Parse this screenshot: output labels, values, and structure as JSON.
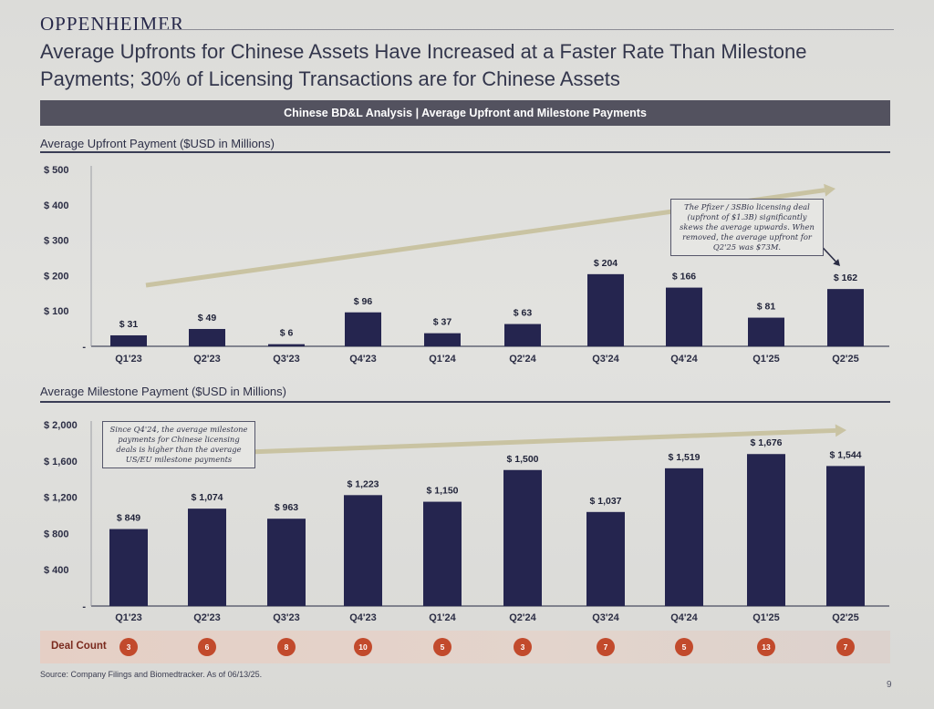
{
  "header": {
    "logo": "OPPENHEIMER",
    "title_line1": "Average Upfronts for Chinese Assets Have Increased at a Faster Rate Than Milestone",
    "title_line2": "Payments; 30% of Licensing Transactions are for Chinese Assets",
    "banner": "Chinese BD&L Analysis | Average Upfront and Milestone Payments"
  },
  "chart_data": [
    {
      "type": "bar",
      "title": "Average Upfront Payment ($USD in Millions)",
      "categories": [
        "Q1'23",
        "Q2'23",
        "Q3'23",
        "Q4'23",
        "Q1'24",
        "Q2'24",
        "Q3'24",
        "Q4'24",
        "Q1'25",
        "Q2'25"
      ],
      "values": [
        31,
        49,
        6,
        96,
        37,
        63,
        204,
        166,
        81,
        162
      ],
      "value_labels": [
        "$ 31",
        "$ 49",
        "$ 6",
        "$ 96",
        "$ 37",
        "$ 63",
        "$ 204",
        "$ 166",
        "$ 81",
        "$ 162"
      ],
      "ylim": [
        0,
        500
      ],
      "yticks": [
        0,
        100,
        200,
        300,
        400,
        500
      ],
      "ytick_labels": [
        "-",
        "$ 100",
        "$ 200",
        "$ 300",
        "$ 400",
        "$ 500"
      ],
      "color": "#25254f",
      "trend_arrow": true,
      "trend_color": "#c9c3a2",
      "annotation": "The Pfizer / 3SBio licensing deal (upfront of $1.3B) significantly skews the average upwards. When removed, the average upfront for Q2'25 was $73M."
    },
    {
      "type": "bar",
      "title": "Average Milestone Payment ($USD in Millions)",
      "categories": [
        "Q1'23",
        "Q2'23",
        "Q3'23",
        "Q4'23",
        "Q1'24",
        "Q2'24",
        "Q3'24",
        "Q4'24",
        "Q1'25",
        "Q2'25"
      ],
      "values": [
        849,
        1074,
        963,
        1223,
        1150,
        1500,
        1037,
        1519,
        1676,
        1544
      ],
      "value_labels": [
        "$ 849",
        "$ 1,074",
        "$ 963",
        "$ 1,223",
        "$ 1,150",
        "$ 1,500",
        "$ 1,037",
        "$ 1,519",
        "$ 1,676",
        "$ 1,544"
      ],
      "ylim": [
        0,
        2000
      ],
      "yticks": [
        0,
        400,
        800,
        1200,
        1600,
        2000
      ],
      "ytick_labels": [
        "-",
        "$ 400",
        "$ 800",
        "$ 1,200",
        "$ 1,600",
        "$ 2,000"
      ],
      "color": "#25254f",
      "trend_arrow": true,
      "trend_color": "#c9c3a2",
      "annotation": "Since Q4'24, the average milestone payments for Chinese licensing deals is higher than the average US/EU milestone payments"
    }
  ],
  "deal_count": {
    "label": "Deal Count",
    "values": [
      "3",
      "6",
      "8",
      "10",
      "5",
      "3",
      "7",
      "5",
      "13",
      "7"
    ],
    "color": "#c24a2c"
  },
  "footer": {
    "source": "Source: Company Filings and Biomedtracker. As of 06/13/25.",
    "page": "9"
  }
}
